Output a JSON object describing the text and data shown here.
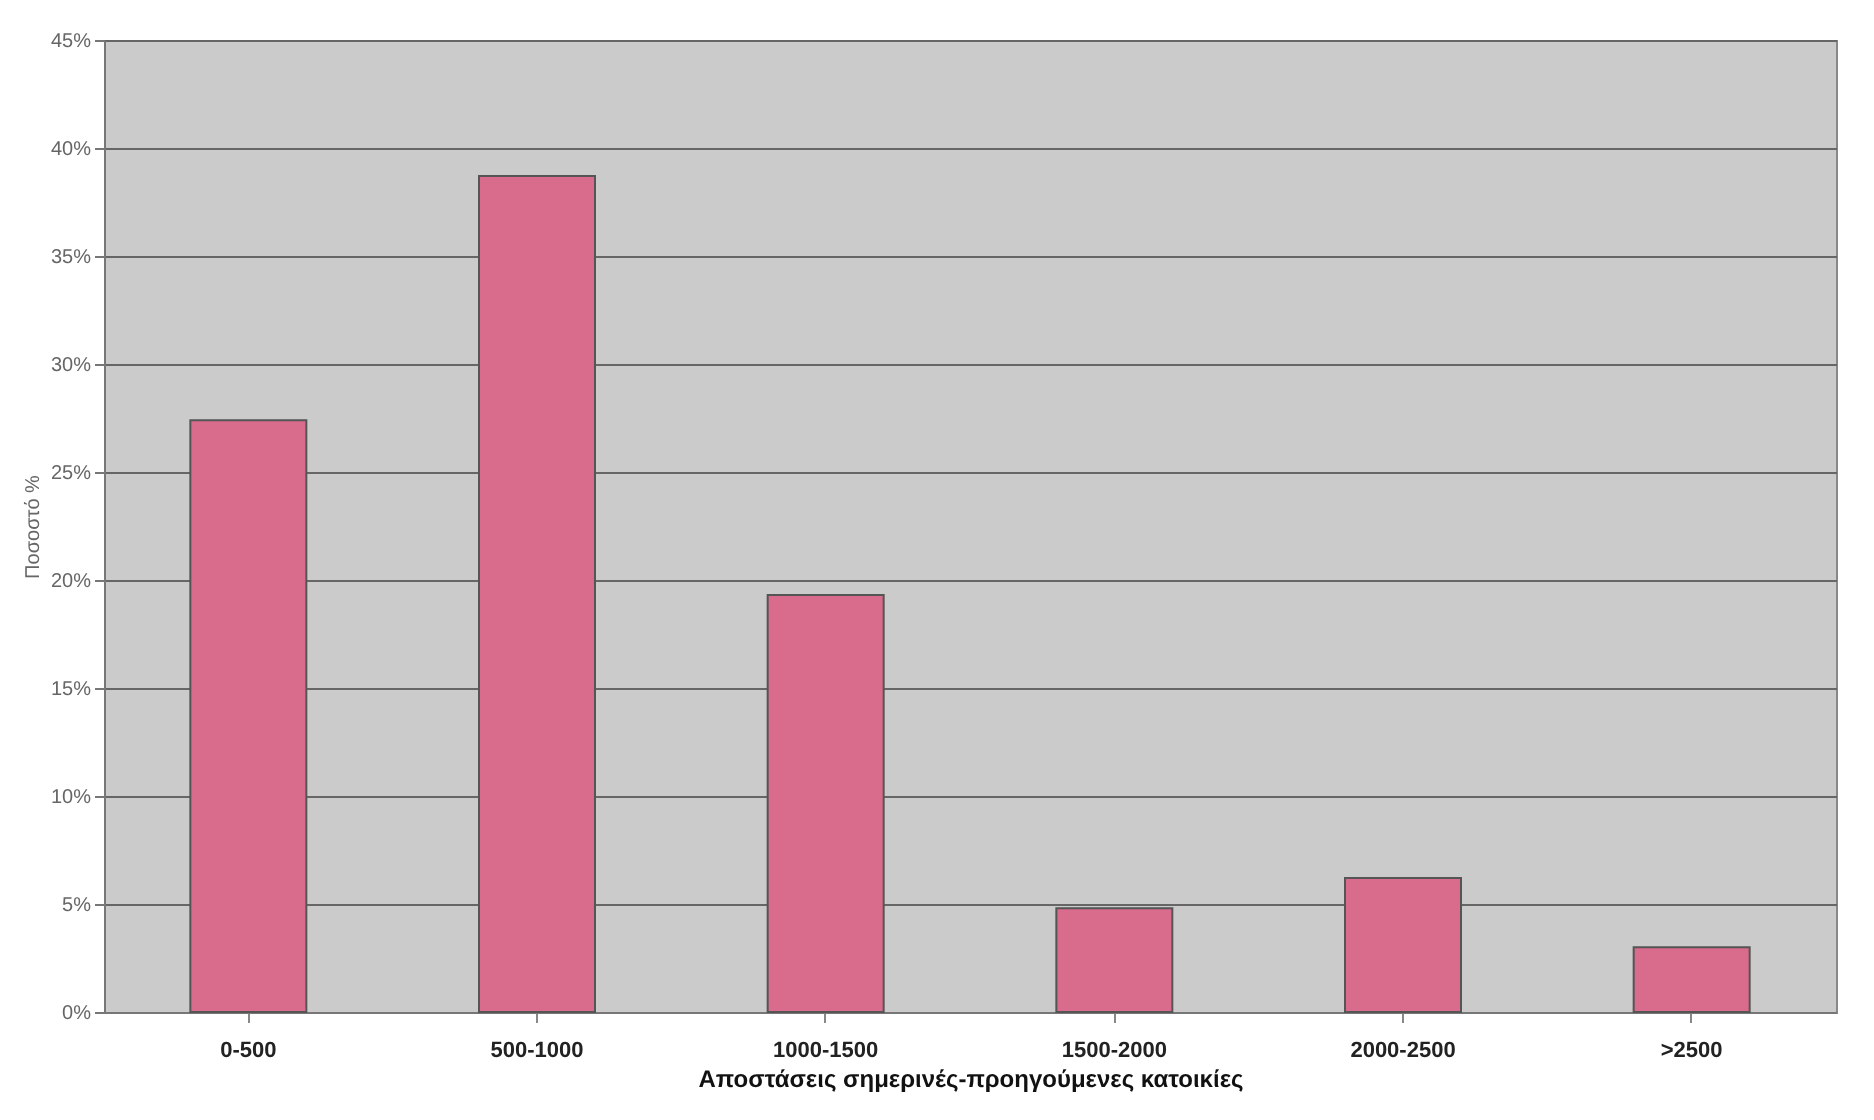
{
  "chart_data": {
    "type": "bar",
    "xlabel": "Αποστάσεις σημερινές-προηγούμενες κατοικίες",
    "ylabel": "Ποσοστό %",
    "categories": [
      "0-500",
      "500-1000",
      "1000-1500",
      "1500-2000",
      "2000-2500",
      ">2500"
    ],
    "values": [
      27.4,
      38.7,
      19.3,
      4.8,
      6.2,
      3.0
    ],
    "color": "#d96b8c",
    "ylim": [
      0,
      45
    ],
    "yticks": [
      {
        "value": 0,
        "label": "0%"
      },
      {
        "value": 5,
        "label": "5%"
      },
      {
        "value": 10,
        "label": "10%"
      },
      {
        "value": 15,
        "label": "15%"
      },
      {
        "value": 20,
        "label": "20%"
      },
      {
        "value": 25,
        "label": "25%"
      },
      {
        "value": 30,
        "label": "30%"
      },
      {
        "value": 35,
        "label": "35%"
      },
      {
        "value": 40,
        "label": "40%"
      },
      {
        "value": 45,
        "label": "45%"
      }
    ],
    "grid": "y"
  }
}
